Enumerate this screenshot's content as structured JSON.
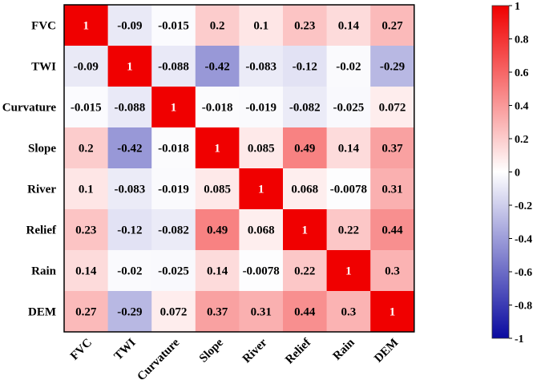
{
  "chart_data": {
    "type": "heatmap",
    "title": "",
    "variables": [
      "FVC",
      "TWI",
      "Curvature",
      "Slope",
      "River",
      "Relief",
      "Rain",
      "DEM"
    ],
    "matrix": [
      [
        1,
        -0.09,
        -0.015,
        0.2,
        0.1,
        0.23,
        0.14,
        0.27
      ],
      [
        -0.09,
        1,
        -0.088,
        -0.42,
        -0.083,
        -0.12,
        -0.02,
        -0.29
      ],
      [
        -0.015,
        -0.088,
        1,
        -0.018,
        -0.019,
        -0.082,
        -0.025,
        0.072
      ],
      [
        0.2,
        -0.42,
        -0.018,
        1,
        0.085,
        0.49,
        0.14,
        0.37
      ],
      [
        0.1,
        -0.083,
        -0.019,
        0.085,
        1,
        0.068,
        -0.0078,
        0.31
      ],
      [
        0.23,
        -0.12,
        -0.082,
        0.49,
        0.068,
        1,
        0.22,
        0.44
      ],
      [
        0.14,
        -0.02,
        -0.025,
        0.14,
        -0.0078,
        0.22,
        1,
        0.3
      ],
      [
        0.27,
        -0.29,
        0.072,
        0.37,
        0.31,
        0.44,
        0.3,
        1
      ]
    ],
    "labels": [
      [
        "1",
        "-0.09",
        "-0.015",
        "0.2",
        "0.1",
        "0.23",
        "0.14",
        "0.27"
      ],
      [
        "-0.09",
        "1",
        "-0.088",
        "-0.42",
        "-0.083",
        "-0.12",
        "-0.02",
        "-0.29"
      ],
      [
        "-0.015",
        "-0.088",
        "1",
        "-0.018",
        "-0.019",
        "-0.082",
        "-0.025",
        "0.072"
      ],
      [
        "0.2",
        "-0.42",
        "-0.018",
        "1",
        "0.085",
        "0.49",
        "0.14",
        "0.37"
      ],
      [
        "0.1",
        "-0.083",
        "-0.019",
        "0.085",
        "1",
        "0.068",
        "-0.0078",
        "0.31"
      ],
      [
        "0.23",
        "-0.12",
        "-0.082",
        "0.49",
        "0.068",
        "1",
        "0.22",
        "0.44"
      ],
      [
        "0.14",
        "-0.02",
        "-0.025",
        "0.14",
        "-0.0078",
        "0.22",
        "1",
        "0.3"
      ],
      [
        "0.27",
        "-0.29",
        "0.072",
        "0.37",
        "0.31",
        "0.44",
        "0.3",
        "1"
      ]
    ],
    "colorbar": {
      "range": [
        -1,
        1
      ],
      "ticks": [
        1,
        0.8,
        0.6,
        0.4,
        0.2,
        0,
        -0.2,
        -0.4,
        -0.6,
        -0.8,
        -1
      ],
      "tick_labels": [
        "1",
        "0.8",
        "0.6",
        "0.4",
        "0.2",
        "0",
        "-0.2",
        "-0.4",
        "-0.6",
        "-0.8",
        "-1"
      ],
      "colors": {
        "low": "#0a0aa0",
        "mid": "#ffffff",
        "high": "#f00000"
      }
    }
  }
}
